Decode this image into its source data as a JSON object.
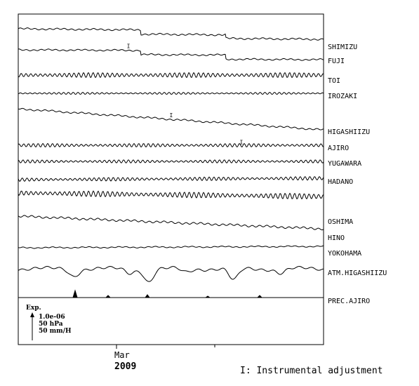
{
  "chart_data": {
    "type": "line",
    "x_ticks": [
      "Mar"
    ],
    "x_year": "2009",
    "series": [
      {
        "name": "SHIMIZU",
        "shape": "drift",
        "steps": [
          [
            0.4,
            6
          ],
          [
            0.68,
            5
          ]
        ],
        "trend": 4,
        "wiggle": 0.9
      },
      {
        "name": "FUJI",
        "shape": "drift",
        "steps": [
          [
            0.4,
            6
          ],
          [
            0.68,
            6
          ]
        ],
        "trend": 2,
        "wiggle": 0.8
      },
      {
        "name": "TOI",
        "shape": "tidal",
        "amp": 3.5,
        "trend": 0
      },
      {
        "name": "IROZAKI",
        "shape": "tidal",
        "amp": 1.5,
        "trend": 0
      },
      {
        "name": "HIGASHIIZU",
        "shape": "drift",
        "steps": [],
        "trend": 30,
        "wiggle": 0.9
      },
      {
        "name": "AJIRO",
        "shape": "tidal",
        "amp": 2.5,
        "trend": 0
      },
      {
        "name": "YUGAWARA",
        "shape": "tidal",
        "amp": 2.2,
        "trend": 0
      },
      {
        "name": "HADANO",
        "shape": "tidal",
        "amp": 2.5,
        "trend": -2
      },
      {
        "name": "OSHIMA",
        "shape": "tidal",
        "amp": 4.0,
        "trend": 5
      },
      {
        "name": "HINO",
        "shape": "drift",
        "steps": [],
        "trend": 18,
        "wiggle": 1.2
      },
      {
        "name": "YOKOHAMA",
        "shape": "drift",
        "steps": [],
        "trend": -2,
        "wiggle": 0.6
      },
      {
        "name": "ATM.HIGASHIIZU",
        "shape": "pressure"
      },
      {
        "name": "PREC.AJIRO",
        "shape": "precip"
      }
    ],
    "adjustment_marker": "I",
    "adjustments": [
      {
        "series": "FUJI",
        "x": 0.36
      },
      {
        "series": "HIGASHIIZU",
        "x": 0.5
      },
      {
        "series": "AJIRO",
        "x": 0.73
      }
    ],
    "scale": {
      "label": "Exp.",
      "strain": "1.0e-06",
      "pressure": "50 hPa",
      "precipitation": "50 mm/H"
    },
    "footnote": "I: Instrumental adjustment",
    "colors": {
      "line": "#000000",
      "background": "#ffffff"
    }
  }
}
